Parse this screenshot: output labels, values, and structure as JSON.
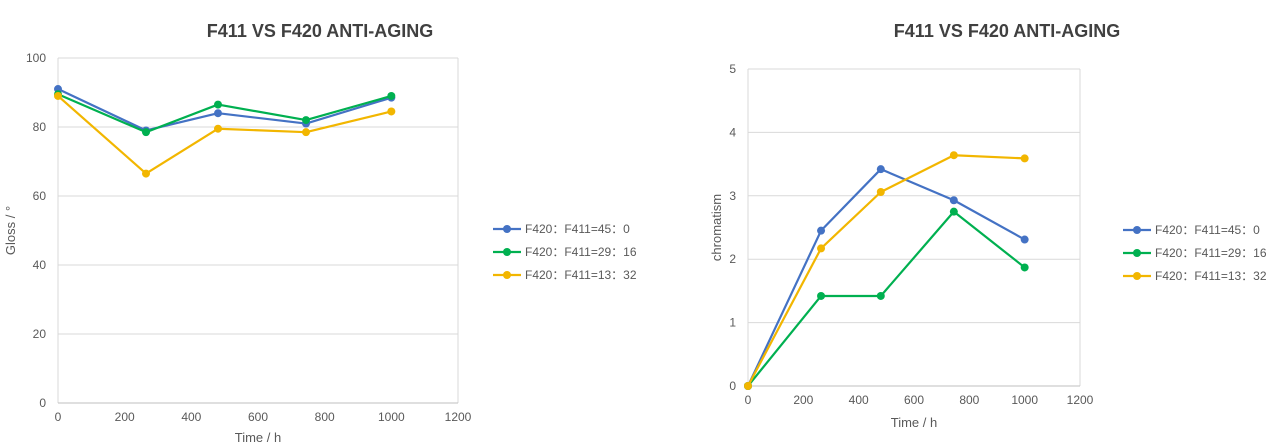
{
  "chart_data": [
    {
      "type": "line",
      "title": "F411 VS F420 ANTI-AGING",
      "xlabel": "Time / h",
      "ylabel": "Gloss / °",
      "xlim": [
        0,
        1200
      ],
      "ylim": [
        0,
        100
      ],
      "xticks": [
        0,
        200,
        400,
        600,
        800,
        1000,
        1200
      ],
      "yticks": [
        0,
        20,
        40,
        60,
        80,
        100
      ],
      "grid": "horizontal",
      "legend_position": "right",
      "x": [
        0,
        264,
        480,
        744,
        1000
      ],
      "series": [
        {
          "name": "F420：F411=45：0",
          "color": "#4472C4",
          "values": [
            91,
            79,
            84,
            81,
            88.5
          ]
        },
        {
          "name": "F420：F411=29：16",
          "color": "#00B050",
          "values": [
            89.5,
            78.5,
            86.5,
            82,
            89
          ]
        },
        {
          "name": "F420：F411=13：32",
          "color": "#F2B600",
          "values": [
            89,
            66.5,
            79.5,
            78.5,
            84.5
          ]
        }
      ]
    },
    {
      "type": "line",
      "title": "F411 VS F420 ANTI-AGING",
      "xlabel": "Time / h",
      "ylabel": "chromatism",
      "xlim": [
        0,
        1200
      ],
      "ylim": [
        0,
        5
      ],
      "xticks": [
        0,
        200,
        400,
        600,
        800,
        1000,
        1200
      ],
      "yticks": [
        0,
        1,
        2,
        3,
        4,
        5
      ],
      "grid": "horizontal",
      "legend_position": "right",
      "x": [
        0,
        264,
        480,
        744,
        1000
      ],
      "series": [
        {
          "name": "F420：F411=45：0",
          "color": "#4472C4",
          "values": [
            0,
            2.45,
            3.42,
            2.93,
            2.31
          ]
        },
        {
          "name": "F420：F411=29：16",
          "color": "#00B050",
          "values": [
            0,
            1.42,
            1.42,
            2.75,
            1.87
          ]
        },
        {
          "name": "F420：F411=13：32",
          "color": "#F2B600",
          "values": [
            0,
            2.17,
            3.06,
            3.64,
            3.59
          ]
        }
      ]
    }
  ]
}
